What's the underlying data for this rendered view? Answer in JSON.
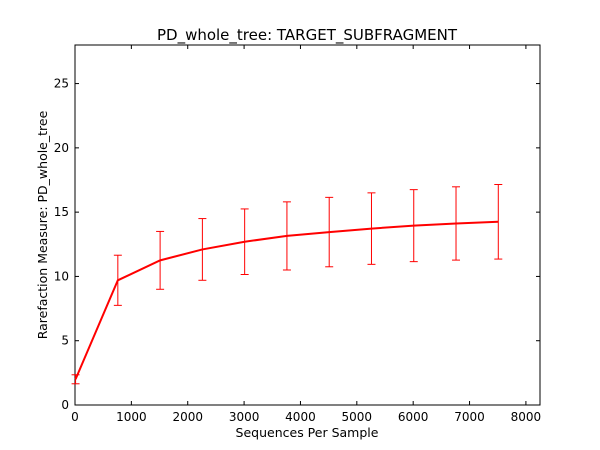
{
  "chart_data": {
    "type": "line",
    "title": "PD_whole_tree: TARGET_SUBFRAGMENT",
    "xlabel": "Sequences Per Sample",
    "ylabel": "Rarefaction Measure: PD_whole_tree",
    "xlim": [
      0,
      8250
    ],
    "ylim": [
      0,
      28
    ],
    "xticks": [
      0,
      1000,
      2000,
      3000,
      4000,
      5000,
      6000,
      7000,
      8000
    ],
    "yticks": [
      0,
      5,
      10,
      15,
      20,
      25
    ],
    "grid": false,
    "series": [
      {
        "color": "#ff0000",
        "x": [
          10,
          760,
          1510,
          2260,
          3010,
          3760,
          4510,
          5260,
          6010,
          6760,
          7510
        ],
        "y": [
          2.0,
          9.7,
          11.25,
          12.1,
          12.7,
          13.15,
          13.45,
          13.72,
          13.95,
          14.12,
          14.25
        ],
        "yerr": [
          0.35,
          1.95,
          2.25,
          2.4,
          2.55,
          2.65,
          2.7,
          2.78,
          2.8,
          2.85,
          2.9
        ]
      }
    ]
  }
}
